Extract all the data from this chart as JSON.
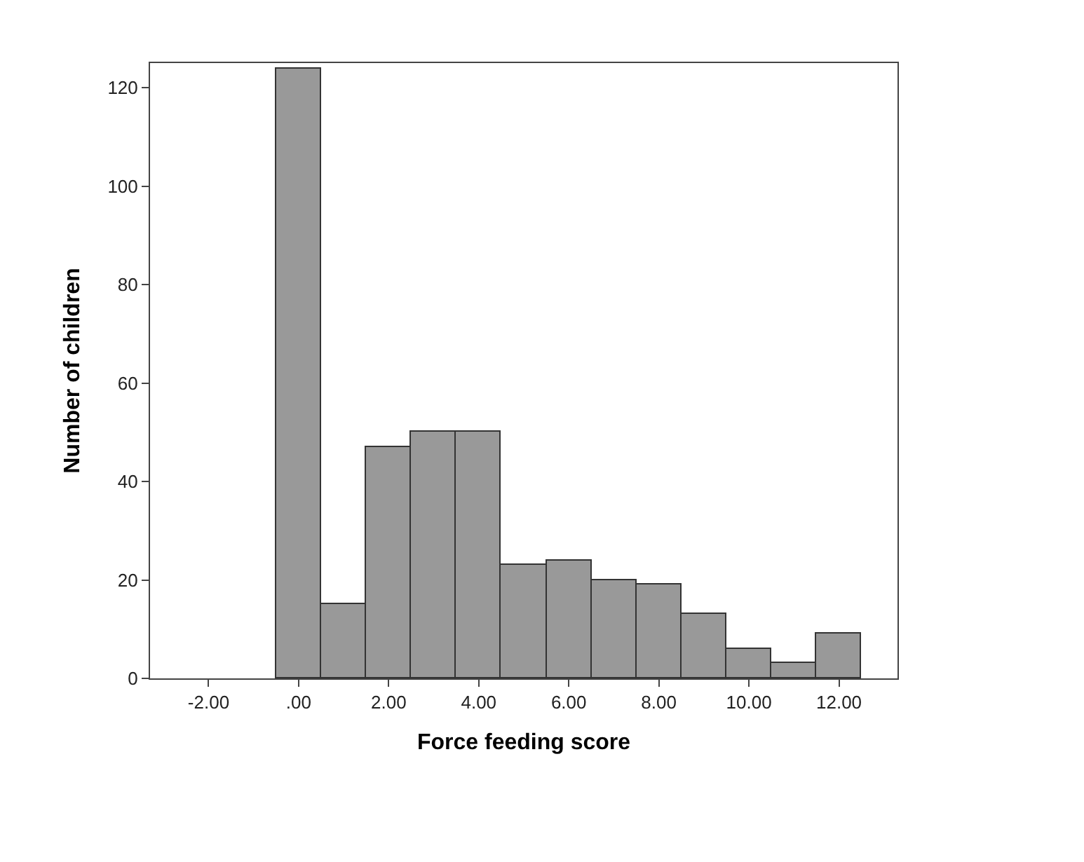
{
  "chart_data": {
    "type": "histogram",
    "xlabel": "Force feeding score",
    "ylabel": "Number of children",
    "bins": [
      -0.5,
      0.5,
      1.5,
      2.5,
      3.5,
      4.5,
      5.5,
      6.5,
      7.5,
      8.5,
      9.5,
      10.5,
      11.5,
      12.5
    ],
    "values": [
      124,
      15,
      47,
      50,
      50,
      23,
      24,
      20,
      19,
      13,
      6,
      3,
      9
    ],
    "color": "#999999",
    "xlim": [
      -3.3,
      13.3
    ],
    "xticks": [
      {
        "value": -2,
        "label": "-2.00"
      },
      {
        "value": 0,
        "label": ".00"
      },
      {
        "value": 2,
        "label": "2.00"
      },
      {
        "value": 4,
        "label": "4.00"
      },
      {
        "value": 6,
        "label": "6.00"
      },
      {
        "value": 8,
        "label": "8.00"
      },
      {
        "value": 10,
        "label": "10.00"
      },
      {
        "value": 12,
        "label": "12.00"
      }
    ],
    "ylim": [
      0,
      125
    ],
    "yticks": [
      0,
      20,
      40,
      60,
      80,
      100,
      120
    ]
  }
}
